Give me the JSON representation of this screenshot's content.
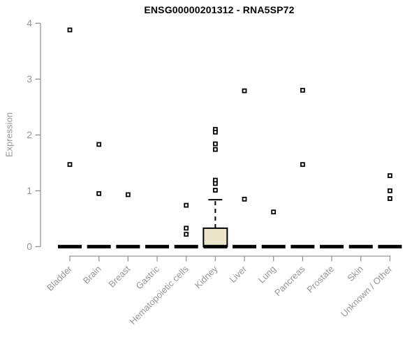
{
  "chart_data": {
    "type": "boxplot",
    "title": "ENSG00000201312 - RNA5SP72",
    "ylabel": "Expression",
    "xlabel": "",
    "ylim": [
      0,
      4
    ],
    "yticks": [
      0,
      1,
      2,
      3,
      4
    ],
    "grid": false,
    "legend": "none",
    "categories": [
      "Bladder",
      "Brain",
      "Breast",
      "Gastric",
      "Hematopoietic cells",
      "Kidney",
      "Liver",
      "Lung",
      "Pancreas",
      "Prostate",
      "Skin",
      "Unknown / Other"
    ],
    "series": [
      {
        "name": "Bladder",
        "median": 0,
        "q1": 0,
        "q3": 0,
        "whisker_low": 0,
        "whisker_high": 0,
        "outliers": [
          3.88,
          1.47
        ]
      },
      {
        "name": "Brain",
        "median": 0,
        "q1": 0,
        "q3": 0,
        "whisker_low": 0,
        "whisker_high": 0,
        "outliers": [
          1.83,
          0.95
        ]
      },
      {
        "name": "Breast",
        "median": 0,
        "q1": 0,
        "q3": 0,
        "whisker_low": 0,
        "whisker_high": 0,
        "outliers": [
          0.93
        ]
      },
      {
        "name": "Gastric",
        "median": 0,
        "q1": 0,
        "q3": 0,
        "whisker_low": 0,
        "whisker_high": 0,
        "outliers": []
      },
      {
        "name": "Hematopoietic cells",
        "median": 0,
        "q1": 0,
        "q3": 0,
        "whisker_low": 0,
        "whisker_high": 0,
        "outliers": [
          0.74,
          0.33,
          0.22
        ]
      },
      {
        "name": "Kidney",
        "median": 0,
        "q1": 0,
        "q3": 0.33,
        "whisker_low": 0,
        "whisker_high": 0.84,
        "outliers": [
          2.1,
          2.05,
          1.84,
          1.74,
          1.19,
          1.13,
          1.01
        ]
      },
      {
        "name": "Liver",
        "median": 0,
        "q1": 0,
        "q3": 0,
        "whisker_low": 0,
        "whisker_high": 0,
        "outliers": [
          2.79,
          0.85
        ]
      },
      {
        "name": "Lung",
        "median": 0,
        "q1": 0,
        "q3": 0,
        "whisker_low": 0,
        "whisker_high": 0,
        "outliers": [
          0.62
        ]
      },
      {
        "name": "Pancreas",
        "median": 0,
        "q1": 0,
        "q3": 0,
        "whisker_low": 0,
        "whisker_high": 0,
        "outliers": [
          2.8,
          1.47
        ]
      },
      {
        "name": "Prostate",
        "median": 0,
        "q1": 0,
        "q3": 0,
        "whisker_low": 0,
        "whisker_high": 0,
        "outliers": []
      },
      {
        "name": "Skin",
        "median": 0,
        "q1": 0,
        "q3": 0,
        "whisker_low": 0,
        "whisker_high": 0,
        "outliers": []
      },
      {
        "name": "Unknown / Other",
        "median": 0,
        "q1": 0,
        "q3": 0,
        "whisker_low": 0,
        "whisker_high": 0,
        "outliers": [
          1.27,
          1.0,
          0.86
        ]
      }
    ],
    "colors": {
      "axis": "#969696",
      "tick_text": "#969696",
      "title_text": "#000000",
      "box_fill": "#ebe5c9",
      "box_border": "#000000",
      "median_bar": "#000000",
      "marker_stroke": "#000000",
      "marker_fill": "#ffffff",
      "background": "#ffffff"
    }
  }
}
